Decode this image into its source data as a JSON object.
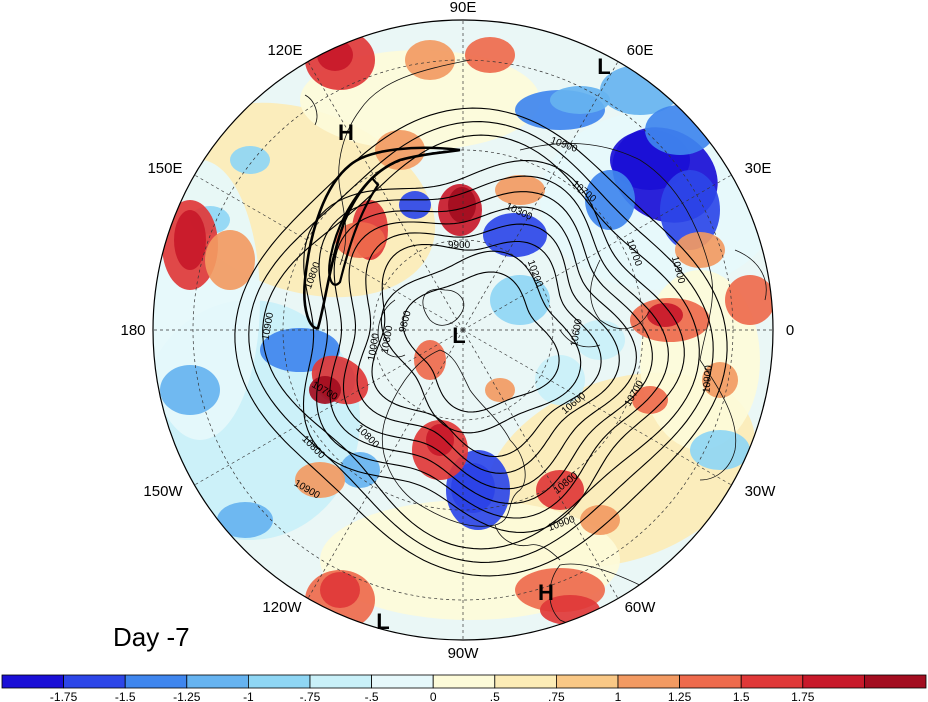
{
  "panel_label": "Day -7",
  "longitude_labels": {
    "lon_90e": "90E",
    "lon_60e": "60E",
    "lon_30e": "30E",
    "lon_0": "0",
    "lon_30w": "30W",
    "lon_60w": "60W",
    "lon_90w": "90W",
    "lon_120w": "120W",
    "lon_150w": "150W",
    "lon_180": "180",
    "lon_150e": "150E",
    "lon_120e": "120E"
  },
  "pressure_centers": [
    {
      "id": "low-pole",
      "letter": "L"
    },
    {
      "id": "low-60e",
      "letter": "L"
    },
    {
      "id": "low-120w",
      "letter": "L"
    },
    {
      "id": "high-120e",
      "letter": "H"
    },
    {
      "id": "high-60w",
      "letter": "H"
    }
  ],
  "contour_labels": [
    {
      "id": "c1",
      "text": "10900"
    },
    {
      "id": "c2",
      "text": "10700"
    },
    {
      "id": "c3",
      "text": "10300"
    },
    {
      "id": "c4",
      "text": "9900"
    },
    {
      "id": "c5",
      "text": "10800"
    },
    {
      "id": "c6",
      "text": "10900"
    },
    {
      "id": "c7",
      "text": "10800"
    },
    {
      "id": "c8",
      "text": "10700"
    },
    {
      "id": "c9",
      "text": "10600"
    },
    {
      "id": "c10",
      "text": "10800"
    },
    {
      "id": "c11",
      "text": "10900"
    },
    {
      "id": "c12",
      "text": "10800"
    },
    {
      "id": "c13",
      "text": "10900"
    },
    {
      "id": "c14",
      "text": "10700"
    },
    {
      "id": "c15",
      "text": "10600"
    },
    {
      "id": "c16",
      "text": "10900"
    },
    {
      "id": "c17",
      "text": "10800"
    },
    {
      "id": "c18",
      "text": "10700"
    },
    {
      "id": "c19",
      "text": "10200"
    },
    {
      "id": "c20",
      "text": "10000"
    },
    {
      "id": "c21",
      "text": "9800"
    },
    {
      "id": "c22",
      "text": "10900"
    }
  ],
  "colorbar": {
    "colors": [
      "#1a0fd6",
      "#2d46e8",
      "#3f86ee",
      "#66b3f0",
      "#8fd6f4",
      "#c9f0f8",
      "#e6f8fb",
      "#fdfbd9",
      "#fcecb6",
      "#f9c886",
      "#f29a62",
      "#ee6a4c",
      "#e03838",
      "#c8192a",
      "#a30d20"
    ],
    "tick_labels": [
      "-1.75",
      "-1.5",
      "-1.25",
      "-1",
      "-.75",
      "-.5",
      "0",
      ".5",
      ".75",
      "1",
      "1.25",
      "1.5",
      "1.75"
    ]
  },
  "colors": {
    "ocean_neutral": "#eaf7f6",
    "frame": "#000000"
  }
}
